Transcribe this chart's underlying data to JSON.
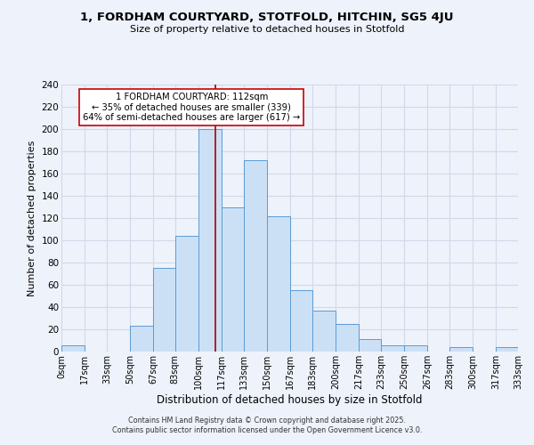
{
  "title": "1, FORDHAM COURTYARD, STOTFOLD, HITCHIN, SG5 4JU",
  "subtitle": "Size of property relative to detached houses in Stotfold",
  "xlabel": "Distribution of detached houses by size in Stotfold",
  "ylabel": "Number of detached properties",
  "bin_edges": [
    0,
    17,
    33,
    50,
    67,
    83,
    100,
    117,
    133,
    150,
    167,
    183,
    200,
    217,
    233,
    250,
    267,
    283,
    300,
    317,
    333
  ],
  "bin_counts": [
    6,
    0,
    0,
    23,
    75,
    104,
    200,
    130,
    172,
    122,
    55,
    37,
    25,
    11,
    6,
    6,
    0,
    4,
    0,
    4
  ],
  "bar_facecolor": "#cce0f5",
  "bar_edgecolor": "#5b9bd5",
  "grid_color": "#d0d8e8",
  "bg_color": "#eef2fb",
  "vline_x": 112,
  "vline_color": "#aa0000",
  "annotation_text": "1 FORDHAM COURTYARD: 112sqm\n← 35% of detached houses are smaller (339)\n64% of semi-detached houses are larger (617) →",
  "annotation_box_edgecolor": "#cc0000",
  "annotation_box_facecolor": "#ffffff",
  "footer_text": "Contains HM Land Registry data © Crown copyright and database right 2025.\nContains public sector information licensed under the Open Government Licence v3.0.",
  "tick_labels": [
    "0sqm",
    "17sqm",
    "33sqm",
    "50sqm",
    "67sqm",
    "83sqm",
    "100sqm",
    "117sqm",
    "133sqm",
    "150sqm",
    "167sqm",
    "183sqm",
    "200sqm",
    "217sqm",
    "233sqm",
    "250sqm",
    "267sqm",
    "283sqm",
    "300sqm",
    "317sqm",
    "333sqm"
  ],
  "ylim": [
    0,
    240
  ],
  "yticks": [
    0,
    20,
    40,
    60,
    80,
    100,
    120,
    140,
    160,
    180,
    200,
    220,
    240
  ]
}
